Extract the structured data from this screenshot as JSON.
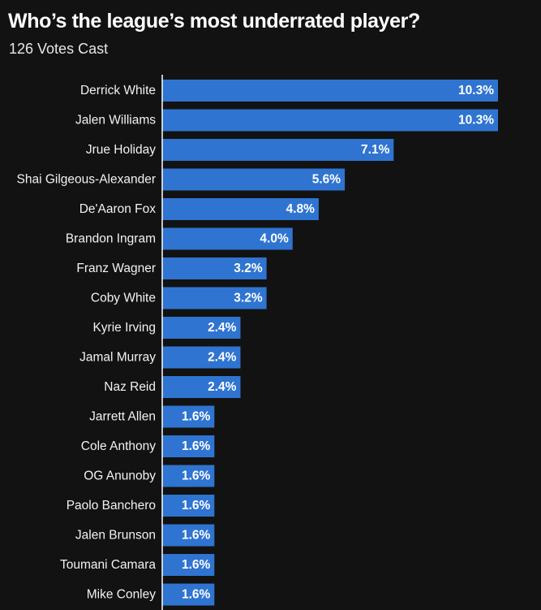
{
  "header": {
    "title": "Who’s the league’s most underrated player?",
    "subtitle": "126 Votes Cast"
  },
  "colors": {
    "bar": "#2f74d0",
    "background": "#121212",
    "axis": "#ffffff"
  },
  "chart_data": {
    "type": "bar",
    "orientation": "horizontal",
    "title": "Who’s the league’s most underrated player?",
    "subtitle": "126 Votes Cast",
    "categories": [
      "Derrick White",
      "Jalen Williams",
      "Jrue Holiday",
      "Shai Gilgeous-Alexander",
      "De'Aaron Fox",
      "Brandon Ingram",
      "Franz Wagner",
      "Coby White",
      "Kyrie Irving",
      "Jamal Murray",
      "Naz Reid",
      "Jarrett Allen",
      "Cole Anthony",
      "OG Anunoby",
      "Paolo Banchero",
      "Jalen Brunson",
      "Toumani Camara",
      "Mike Conley"
    ],
    "values": [
      10.3,
      10.3,
      7.1,
      5.6,
      4.8,
      4.0,
      3.2,
      3.2,
      2.4,
      2.4,
      2.4,
      1.6,
      1.6,
      1.6,
      1.6,
      1.6,
      1.6,
      1.6
    ],
    "value_labels": [
      "10.3%",
      "10.3%",
      "7.1%",
      "5.6%",
      "4.8%",
      "4.0%",
      "3.2%",
      "3.2%",
      "2.4%",
      "2.4%",
      "2.4%",
      "1.6%",
      "1.6%",
      "1.6%",
      "1.6%",
      "1.6%",
      "1.6%",
      "1.6%"
    ],
    "unit": "%",
    "xlim": [
      0,
      10.3
    ],
    "grid": false,
    "legend": "none"
  }
}
